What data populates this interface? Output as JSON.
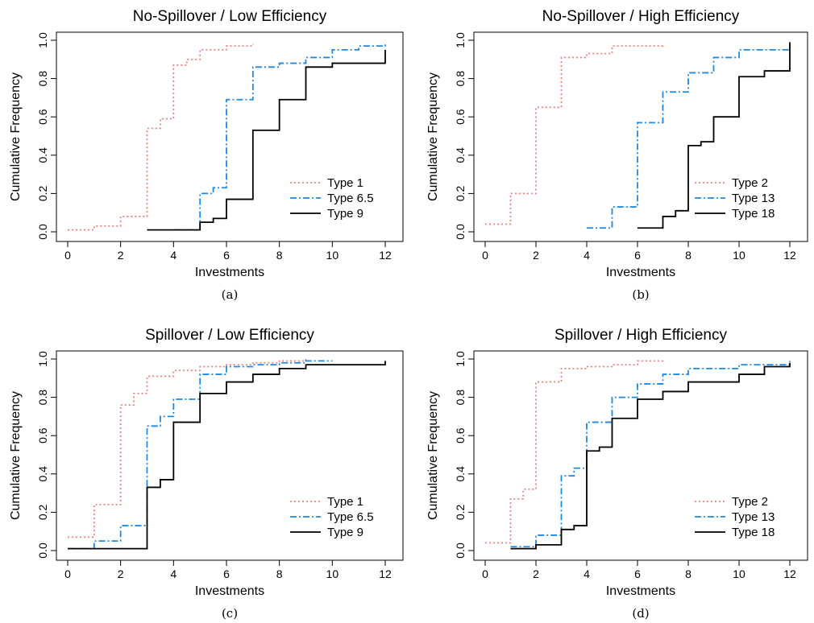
{
  "colors": {
    "series_1": "#f08080",
    "series_2": "#1e88e5",
    "series_3": "#000000"
  },
  "chart_data": [
    {
      "type": "line",
      "title": "No-Spillover / Low Efficiency",
      "caption": "(a)",
      "xlabel": "Investments",
      "ylabel": "Cumulative Frequency",
      "xlim": [
        0,
        12
      ],
      "ylim": [
        0,
        1
      ],
      "xticks": [
        "0",
        "2",
        "4",
        "6",
        "8",
        "10",
        "12"
      ],
      "yticks": [
        "0.0",
        "0.2",
        "0.4",
        "0.6",
        "0.8",
        "1.0"
      ],
      "legend_position": "bottom-right",
      "series": [
        {
          "name": "Type 1",
          "style": "dotted",
          "color": "#f08080",
          "x": [
            0,
            1,
            2,
            3,
            3.5,
            4,
            4.5,
            5,
            6,
            7
          ],
          "y": [
            0.01,
            0.03,
            0.08,
            0.54,
            0.59,
            0.87,
            0.9,
            0.95,
            0.97,
            0.98
          ]
        },
        {
          "name": "Type 6.5",
          "style": "dashdot",
          "color": "#1e88e5",
          "x": [
            4,
            5,
            5.5,
            6,
            7,
            8,
            9,
            10,
            11,
            12
          ],
          "y": [
            0.01,
            0.2,
            0.23,
            0.69,
            0.86,
            0.88,
            0.91,
            0.95,
            0.97,
            0.98
          ]
        },
        {
          "name": "Type 9",
          "style": "solid",
          "color": "#000000",
          "x": [
            3,
            5,
            5.5,
            6,
            7,
            8,
            9,
            10,
            12
          ],
          "y": [
            0.01,
            0.05,
            0.07,
            0.17,
            0.53,
            0.69,
            0.86,
            0.88,
            0.95
          ]
        }
      ]
    },
    {
      "type": "line",
      "title": "No-Spillover / High Efficiency",
      "caption": "(b)",
      "xlabel": "Investments",
      "ylabel": "Cumulative Frequency",
      "xlim": [
        0,
        12
      ],
      "ylim": [
        0,
        1
      ],
      "xticks": [
        "0",
        "2",
        "4",
        "6",
        "8",
        "10",
        "12"
      ],
      "yticks": [
        "0.0",
        "0.2",
        "0.4",
        "0.6",
        "0.8",
        "1.0"
      ],
      "legend_position": "bottom-right",
      "series": [
        {
          "name": "Type 2",
          "style": "dotted",
          "color": "#f08080",
          "x": [
            0,
            1,
            2,
            3,
            4,
            5,
            6,
            7
          ],
          "y": [
            0.04,
            0.2,
            0.65,
            0.91,
            0.93,
            0.97,
            0.97,
            0.98
          ]
        },
        {
          "name": "Type 13",
          "style": "dashdot",
          "color": "#1e88e5",
          "x": [
            4,
            5,
            6,
            7,
            8,
            9,
            10,
            12
          ],
          "y": [
            0.02,
            0.13,
            0.57,
            0.73,
            0.83,
            0.91,
            0.95,
            0.97
          ]
        },
        {
          "name": "Type 18",
          "style": "solid",
          "color": "#000000",
          "x": [
            6,
            7,
            7.5,
            8,
            8.5,
            9,
            10,
            11,
            12
          ],
          "y": [
            0.02,
            0.08,
            0.11,
            0.45,
            0.47,
            0.6,
            0.81,
            0.84,
            0.99
          ]
        }
      ]
    },
    {
      "type": "line",
      "title": "Spillover / Low Efficiency",
      "caption": "(c)",
      "xlabel": "Investments",
      "ylabel": "Cumulative Frequency",
      "xlim": [
        0,
        12
      ],
      "ylim": [
        0,
        1
      ],
      "xticks": [
        "0",
        "2",
        "4",
        "6",
        "8",
        "10",
        "12"
      ],
      "yticks": [
        "0.0",
        "0.2",
        "0.4",
        "0.6",
        "0.8",
        "1.0"
      ],
      "legend_position": "bottom-right",
      "series": [
        {
          "name": "Type 1",
          "style": "dotted",
          "color": "#f08080",
          "x": [
            0,
            1,
            2,
            2.5,
            3,
            4,
            5,
            6,
            7,
            8,
            9
          ],
          "y": [
            0.07,
            0.24,
            0.76,
            0.82,
            0.91,
            0.94,
            0.96,
            0.97,
            0.98,
            0.99,
            1.0
          ]
        },
        {
          "name": "Type 6.5",
          "style": "dashdot",
          "color": "#1e88e5",
          "x": [
            0,
            1,
            2,
            3,
            3.5,
            4,
            5,
            6,
            7,
            8,
            9,
            10
          ],
          "y": [
            0.01,
            0.05,
            0.13,
            0.65,
            0.7,
            0.79,
            0.92,
            0.96,
            0.97,
            0.98,
            0.99,
            0.99
          ]
        },
        {
          "name": "Type 9",
          "style": "solid",
          "color": "#000000",
          "x": [
            0,
            3,
            3.5,
            4,
            5,
            6,
            7,
            8,
            9,
            12
          ],
          "y": [
            0.01,
            0.33,
            0.37,
            0.67,
            0.82,
            0.88,
            0.92,
            0.95,
            0.97,
            0.99
          ]
        }
      ]
    },
    {
      "type": "line",
      "title": "Spillover / High Efficiency",
      "caption": "(d)",
      "xlabel": "Investments",
      "ylabel": "Cumulative Frequency",
      "xlim": [
        0,
        12
      ],
      "ylim": [
        0,
        1
      ],
      "xticks": [
        "0",
        "2",
        "4",
        "6",
        "8",
        "10",
        "12"
      ],
      "yticks": [
        "0.0",
        "0.2",
        "0.4",
        "0.6",
        "0.8",
        "1.0"
      ],
      "legend_position": "bottom-right",
      "series": [
        {
          "name": "Type 2",
          "style": "dotted",
          "color": "#f08080",
          "x": [
            0,
            1,
            1.5,
            2,
            3,
            4,
            5,
            6,
            7
          ],
          "y": [
            0.04,
            0.27,
            0.32,
            0.88,
            0.95,
            0.96,
            0.97,
            0.99,
            1.0
          ]
        },
        {
          "name": "Type 13",
          "style": "dashdot",
          "color": "#1e88e5",
          "x": [
            1,
            2,
            3,
            3.5,
            4,
            5,
            6,
            7,
            8,
            10,
            12
          ],
          "y": [
            0.02,
            0.08,
            0.39,
            0.43,
            0.67,
            0.8,
            0.87,
            0.92,
            0.95,
            0.97,
            0.99
          ]
        },
        {
          "name": "Type 18",
          "style": "solid",
          "color": "#000000",
          "x": [
            1,
            2,
            3,
            3.5,
            4,
            4.5,
            5,
            6,
            7,
            8,
            10,
            11,
            12
          ],
          "y": [
            0.01,
            0.03,
            0.11,
            0.13,
            0.52,
            0.54,
            0.69,
            0.79,
            0.83,
            0.88,
            0.92,
            0.96,
            0.98
          ]
        }
      ]
    }
  ]
}
